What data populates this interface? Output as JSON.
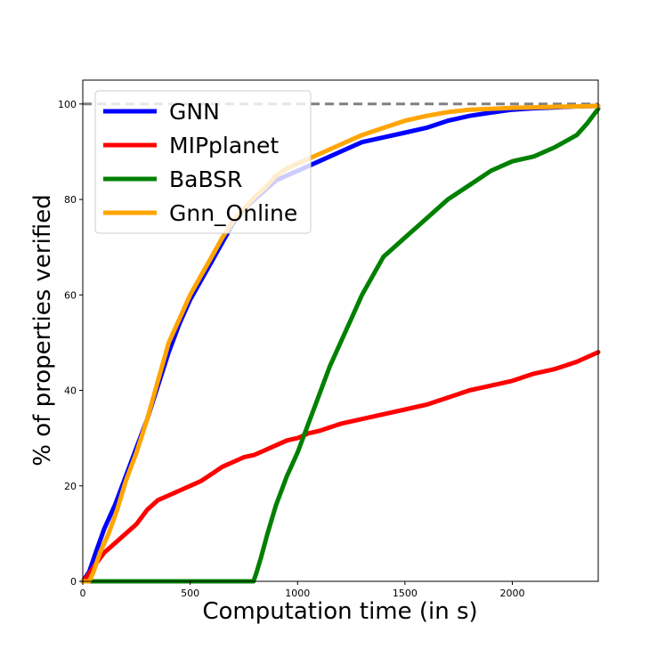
{
  "chart_data": {
    "type": "line",
    "title": "",
    "xlabel": "Computation time (in s)",
    "ylabel": "% of properties verified",
    "xlim": [
      0,
      2400
    ],
    "ylim": [
      0,
      105
    ],
    "x_ticks": [
      0,
      500,
      1000,
      1500,
      2000
    ],
    "y_ticks": [
      0,
      20,
      40,
      60,
      80,
      100
    ],
    "grid": false,
    "legend_position": "top-left",
    "reference_line": {
      "y": 100,
      "style": "dashed",
      "color": "#808080"
    },
    "series": [
      {
        "name": "GNN",
        "color": "#0000ff",
        "x": [
          0,
          30,
          60,
          100,
          150,
          200,
          250,
          300,
          350,
          400,
          450,
          500,
          550,
          600,
          650,
          700,
          750,
          800,
          850,
          900,
          950,
          1000,
          1100,
          1200,
          1300,
          1400,
          1500,
          1600,
          1700,
          1800,
          1900,
          2000,
          2100,
          2200,
          2300,
          2400
        ],
        "y": [
          0,
          2,
          6,
          11,
          16,
          22,
          28,
          34,
          41,
          48,
          54,
          59,
          63,
          67,
          71,
          75,
          78,
          80,
          82,
          84,
          85,
          86,
          88,
          90,
          92,
          93,
          94,
          95,
          96.5,
          97.5,
          98.2,
          98.8,
          99.1,
          99.3,
          99.5,
          99.6
        ]
      },
      {
        "name": "MIPplanet",
        "color": "#ff0000",
        "x": [
          0,
          20,
          50,
          100,
          150,
          200,
          250,
          300,
          350,
          400,
          450,
          500,
          550,
          600,
          650,
          700,
          750,
          800,
          850,
          900,
          950,
          1000,
          1050,
          1100,
          1200,
          1300,
          1400,
          1500,
          1600,
          1700,
          1800,
          1900,
          2000,
          2100,
          2200,
          2300,
          2400
        ],
        "y": [
          0,
          1,
          3,
          6,
          8,
          10,
          12,
          15,
          17,
          18,
          19,
          20,
          21,
          22.5,
          24,
          25,
          26,
          26.5,
          27.5,
          28.5,
          29.5,
          30,
          31,
          31.5,
          33,
          34,
          35,
          36,
          37,
          38.5,
          40,
          41,
          42,
          43.5,
          44.5,
          46,
          48
        ]
      },
      {
        "name": "BaBSR",
        "color": "#008000",
        "x": [
          0,
          795,
          810,
          830,
          860,
          900,
          950,
          1000,
          1050,
          1100,
          1150,
          1200,
          1250,
          1300,
          1350,
          1400,
          1450,
          1500,
          1600,
          1700,
          1800,
          1900,
          2000,
          2100,
          2200,
          2300,
          2350,
          2400
        ],
        "y": [
          0,
          0,
          2,
          5,
          10,
          16,
          22,
          27,
          33,
          39,
          45,
          50,
          55,
          60,
          64,
          68,
          70,
          72,
          76,
          80,
          83,
          86,
          88,
          89,
          91,
          93.5,
          96,
          99
        ]
      },
      {
        "name": "Gnn_Online",
        "color": "#ffa500",
        "x": [
          0,
          30,
          50,
          80,
          120,
          160,
          200,
          250,
          300,
          350,
          400,
          450,
          500,
          550,
          600,
          650,
          700,
          750,
          800,
          850,
          900,
          950,
          1000,
          1100,
          1200,
          1300,
          1400,
          1500,
          1600,
          1700,
          1800,
          1900,
          2000,
          2100,
          2200,
          2300,
          2400
        ],
        "y": [
          0,
          0,
          2,
          6,
          10,
          15,
          21,
          27,
          34,
          42,
          50,
          55,
          60,
          64,
          68,
          72,
          75.5,
          78,
          80.5,
          82.5,
          85,
          86.5,
          87.5,
          89.5,
          91.5,
          93.5,
          95,
          96.5,
          97.5,
          98.3,
          98.8,
          99,
          99.2,
          99.3,
          99.4,
          99.5,
          99.6
        ]
      }
    ]
  }
}
